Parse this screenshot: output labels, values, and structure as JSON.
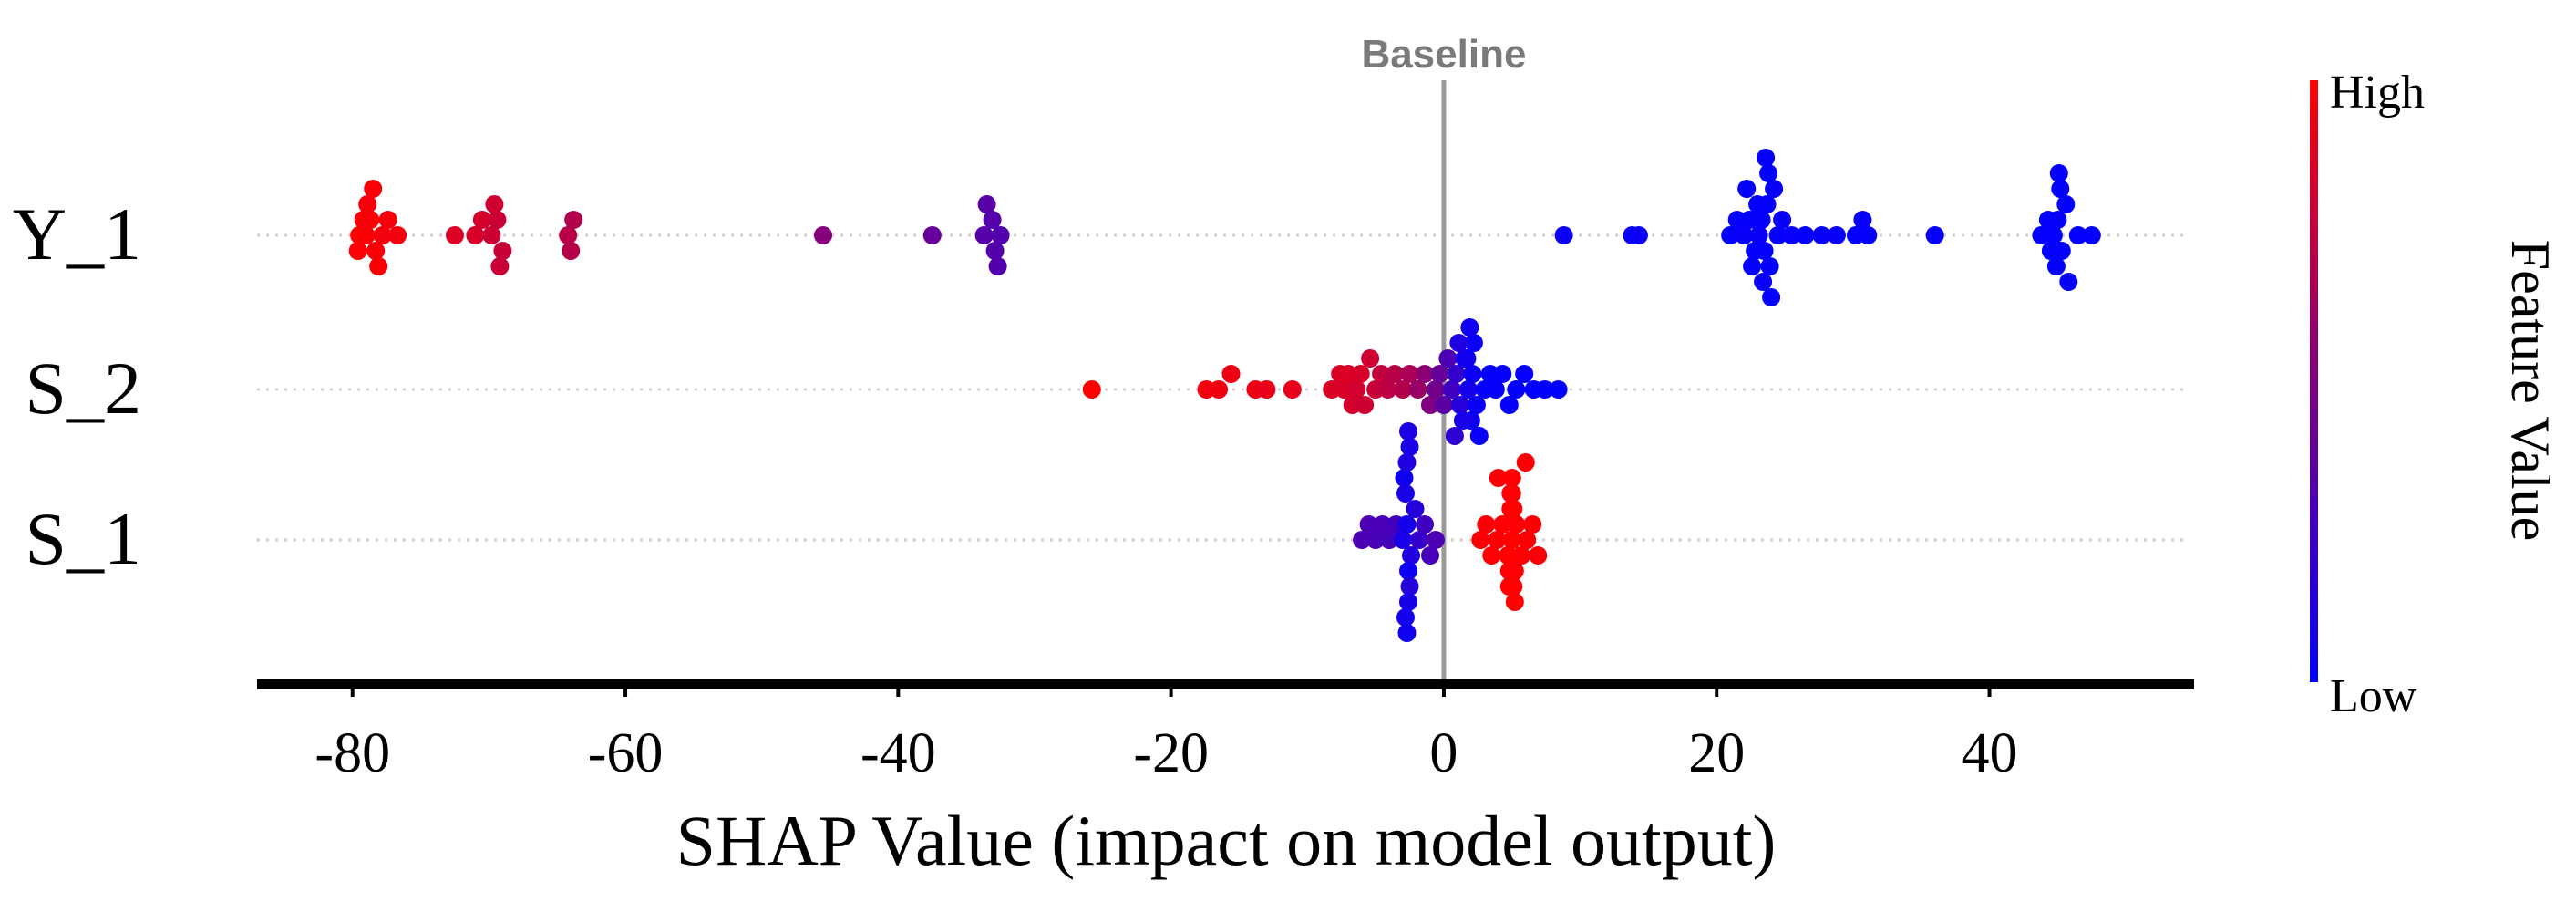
{
  "chart_data": {
    "type": "scatter",
    "subtype": "shap-beeswarm",
    "title": "",
    "xlabel": "SHAP Value (impact on model output)",
    "ylabel": "",
    "xlim": [
      -87,
      55
    ],
    "xticks": [
      -80,
      -60,
      -40,
      -20,
      0,
      20,
      40
    ],
    "baseline": {
      "value": 0,
      "label": "Baseline"
    },
    "colorbar": {
      "title": "Feature Value",
      "high_label": "High",
      "low_label": "Low",
      "high_color": "#ff0000",
      "low_color": "#0000ff"
    },
    "features": [
      {
        "name": "Y_1",
        "points": [
          {
            "x": -79.5,
            "v": 1.0
          },
          {
            "x": -79.0,
            "v": 0.98
          },
          {
            "x": -78.7,
            "v": 0.99
          },
          {
            "x": -78.3,
            "v": 0.97
          },
          {
            "x": -79.2,
            "v": 0.97
          },
          {
            "x": -78.9,
            "v": 0.96
          },
          {
            "x": -78.1,
            "v": 0.98
          },
          {
            "x": -77.8,
            "v": 0.95
          },
          {
            "x": -77.4,
            "v": 0.96
          },
          {
            "x": -79.6,
            "v": 0.99
          },
          {
            "x": -78.5,
            "v": 0.97
          },
          {
            "x": -76.7,
            "v": 0.95
          },
          {
            "x": -72.5,
            "v": 0.86
          },
          {
            "x": -71.0,
            "v": 0.84
          },
          {
            "x": -70.5,
            "v": 0.83
          },
          {
            "x": -69.8,
            "v": 0.8
          },
          {
            "x": -69.4,
            "v": 0.79
          },
          {
            "x": -69.0,
            "v": 0.78
          },
          {
            "x": -69.6,
            "v": 0.81
          },
          {
            "x": -69.2,
            "v": 0.79
          },
          {
            "x": -64.2,
            "v": 0.72
          },
          {
            "x": -63.8,
            "v": 0.7
          },
          {
            "x": -64.0,
            "v": 0.71
          },
          {
            "x": -45.5,
            "v": 0.52
          },
          {
            "x": -37.5,
            "v": 0.4
          },
          {
            "x": -33.7,
            "v": 0.34
          },
          {
            "x": -33.1,
            "v": 0.33
          },
          {
            "x": -32.5,
            "v": 0.32
          },
          {
            "x": -32.9,
            "v": 0.33
          },
          {
            "x": -33.5,
            "v": 0.34
          },
          {
            "x": -32.7,
            "v": 0.32
          },
          {
            "x": 8.8,
            "v": 0.05
          },
          {
            "x": 13.8,
            "v": 0.04
          },
          {
            "x": 14.3,
            "v": 0.04
          },
          {
            "x": 21.0,
            "v": 0.02
          },
          {
            "x": 21.5,
            "v": 0.02
          },
          {
            "x": 22.0,
            "v": 0.03
          },
          {
            "x": 22.4,
            "v": 0.02
          },
          {
            "x": 22.8,
            "v": 0.02
          },
          {
            "x": 23.1,
            "v": 0.03
          },
          {
            "x": 23.3,
            "v": 0.02
          },
          {
            "x": 23.5,
            "v": 0.01
          },
          {
            "x": 23.7,
            "v": 0.02
          },
          {
            "x": 23.9,
            "v": 0.02
          },
          {
            "x": 24.2,
            "v": 0.03
          },
          {
            "x": 24.5,
            "v": 0.02
          },
          {
            "x": 23.0,
            "v": 0.02
          },
          {
            "x": 23.4,
            "v": 0.03
          },
          {
            "x": 23.8,
            "v": 0.02
          },
          {
            "x": 22.6,
            "v": 0.02
          },
          {
            "x": 24.0,
            "v": 0.01
          },
          {
            "x": 22.2,
            "v": 0.02
          },
          {
            "x": 23.6,
            "v": 0.02
          },
          {
            "x": 24.8,
            "v": 0.03
          },
          {
            "x": 25.5,
            "v": 0.03
          },
          {
            "x": 26.5,
            "v": 0.02
          },
          {
            "x": 27.7,
            "v": 0.03
          },
          {
            "x": 28.8,
            "v": 0.03
          },
          {
            "x": 30.2,
            "v": 0.02
          },
          {
            "x": 30.7,
            "v": 0.03
          },
          {
            "x": 31.1,
            "v": 0.02
          },
          {
            "x": 36.0,
            "v": 0.02
          },
          {
            "x": 43.8,
            "v": 0.01
          },
          {
            "x": 44.3,
            "v": 0.01
          },
          {
            "x": 44.7,
            "v": 0.01
          },
          {
            "x": 45.0,
            "v": 0.02
          },
          {
            "x": 45.3,
            "v": 0.01
          },
          {
            "x": 45.6,
            "v": 0.01
          },
          {
            "x": 44.9,
            "v": 0.02
          },
          {
            "x": 45.2,
            "v": 0.01
          },
          {
            "x": 44.5,
            "v": 0.01
          },
          {
            "x": 45.8,
            "v": 0.02
          },
          {
            "x": 46.5,
            "v": 0.01
          },
          {
            "x": 47.5,
            "v": 0.01
          },
          {
            "x": 45.1,
            "v": 0.02
          }
        ]
      },
      {
        "name": "S_2",
        "points": [
          {
            "x": -25.8,
            "v": 1.0
          },
          {
            "x": -17.4,
            "v": 0.95
          },
          {
            "x": -16.5,
            "v": 0.94
          },
          {
            "x": -15.6,
            "v": 0.93
          },
          {
            "x": -13.8,
            "v": 0.92
          },
          {
            "x": -13.0,
            "v": 0.9
          },
          {
            "x": -11.1,
            "v": 0.9
          },
          {
            "x": -8.2,
            "v": 0.85
          },
          {
            "x": -7.6,
            "v": 0.85
          },
          {
            "x": -7.3,
            "v": 0.84
          },
          {
            "x": -7.0,
            "v": 0.86
          },
          {
            "x": -6.7,
            "v": 0.83
          },
          {
            "x": -6.4,
            "v": 0.82
          },
          {
            "x": -6.1,
            "v": 0.84
          },
          {
            "x": -5.8,
            "v": 0.8
          },
          {
            "x": -5.4,
            "v": 0.8
          },
          {
            "x": -5.0,
            "v": 0.78
          },
          {
            "x": -4.6,
            "v": 0.76
          },
          {
            "x": -4.1,
            "v": 0.74
          },
          {
            "x": -3.6,
            "v": 0.72
          },
          {
            "x": -3.0,
            "v": 0.7
          },
          {
            "x": -2.5,
            "v": 0.67
          },
          {
            "x": -1.9,
            "v": 0.6
          },
          {
            "x": -1.4,
            "v": 0.55
          },
          {
            "x": -1.0,
            "v": 0.5
          },
          {
            "x": -0.6,
            "v": 0.45
          },
          {
            "x": -0.3,
            "v": 0.4
          },
          {
            "x": 0.0,
            "v": 0.36
          },
          {
            "x": 0.3,
            "v": 0.3
          },
          {
            "x": 0.6,
            "v": 0.25
          },
          {
            "x": 0.9,
            "v": 0.2
          },
          {
            "x": 1.2,
            "v": 0.15
          },
          {
            "x": 1.5,
            "v": 0.12
          },
          {
            "x": 1.8,
            "v": 0.08
          },
          {
            "x": 2.1,
            "v": 0.05
          },
          {
            "x": 2.4,
            "v": 0.03
          },
          {
            "x": 1.7,
            "v": 0.06
          },
          {
            "x": 2.0,
            "v": 0.05
          },
          {
            "x": 1.4,
            "v": 0.1
          },
          {
            "x": 2.2,
            "v": 0.04
          },
          {
            "x": 2.6,
            "v": 0.03
          },
          {
            "x": 1.1,
            "v": 0.12
          },
          {
            "x": 0.8,
            "v": 0.18
          },
          {
            "x": 1.9,
            "v": 0.06
          },
          {
            "x": 3.0,
            "v": 0.03
          },
          {
            "x": 3.4,
            "v": 0.02
          },
          {
            "x": 3.8,
            "v": 0.02
          },
          {
            "x": 4.3,
            "v": 0.02
          },
          {
            "x": 4.8,
            "v": 0.02
          },
          {
            "x": 5.3,
            "v": 0.01
          },
          {
            "x": 5.9,
            "v": 0.01
          },
          {
            "x": 6.6,
            "v": 0.01
          },
          {
            "x": 7.4,
            "v": 0.0
          },
          {
            "x": 8.4,
            "v": 0.0
          }
        ]
      },
      {
        "name": "S_1",
        "points": [
          {
            "x": -6.0,
            "v": 0.3
          },
          {
            "x": -5.5,
            "v": 0.3
          },
          {
            "x": -5.0,
            "v": 0.29
          },
          {
            "x": -4.5,
            "v": 0.28
          },
          {
            "x": -4.0,
            "v": 0.27
          },
          {
            "x": -3.5,
            "v": 0.26
          },
          {
            "x": -3.0,
            "v": 0.1
          },
          {
            "x": -2.7,
            "v": 0.08
          },
          {
            "x": -2.4,
            "v": 0.12
          },
          {
            "x": -2.1,
            "v": 0.15
          },
          {
            "x": -1.8,
            "v": 0.2
          },
          {
            "x": -1.4,
            "v": 0.25
          },
          {
            "x": -1.0,
            "v": 0.28
          },
          {
            "x": -0.6,
            "v": 0.3
          },
          {
            "x": -2.6,
            "v": 0.05
          },
          {
            "x": -2.8,
            "v": 0.1
          },
          {
            "x": -2.5,
            "v": 0.14
          },
          {
            "x": -2.9,
            "v": 0.06
          },
          {
            "x": -2.6,
            "v": 0.09
          },
          {
            "x": -2.7,
            "v": 0.12
          },
          {
            "x": -2.8,
            "v": 0.08
          },
          {
            "x": -2.5,
            "v": 0.1
          },
          {
            "x": -2.7,
            "v": 0.06
          },
          {
            "x": -2.6,
            "v": 0.11
          },
          {
            "x": 2.7,
            "v": 0.98
          },
          {
            "x": 3.1,
            "v": 0.98
          },
          {
            "x": 3.5,
            "v": 0.99
          },
          {
            "x": 3.9,
            "v": 0.98
          },
          {
            "x": 4.3,
            "v": 0.99
          },
          {
            "x": 4.7,
            "v": 1.0
          },
          {
            "x": 5.0,
            "v": 1.0
          },
          {
            "x": 5.3,
            "v": 0.99
          },
          {
            "x": 5.7,
            "v": 0.99
          },
          {
            "x": 6.1,
            "v": 0.98
          },
          {
            "x": 6.5,
            "v": 0.98
          },
          {
            "x": 6.9,
            "v": 0.97
          },
          {
            "x": 4.9,
            "v": 1.0
          },
          {
            "x": 5.1,
            "v": 1.0
          },
          {
            "x": 4.8,
            "v": 0.99
          },
          {
            "x": 5.2,
            "v": 0.99
          },
          {
            "x": 5.0,
            "v": 1.0
          },
          {
            "x": 4.9,
            "v": 0.99
          },
          {
            "x": 5.1,
            "v": 1.0
          },
          {
            "x": 5.0,
            "v": 0.99
          },
          {
            "x": 4.8,
            "v": 1.0
          },
          {
            "x": 5.2,
            "v": 1.0
          },
          {
            "x": 4.0,
            "v": 0.98
          },
          {
            "x": 6.0,
            "v": 0.98
          }
        ]
      }
    ]
  }
}
